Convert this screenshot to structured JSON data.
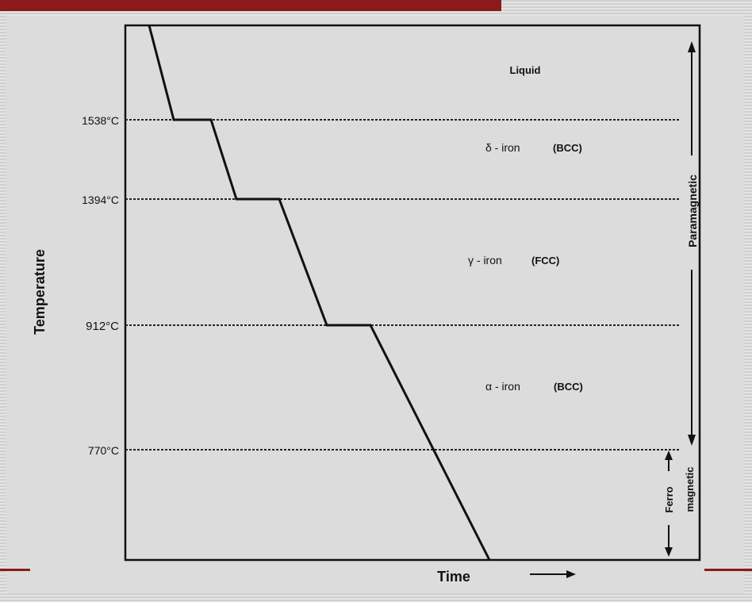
{
  "diagram": {
    "temperature_marks": [
      "1538°C",
      "1394°C",
      "912°C",
      "770°C"
    ],
    "phases": {
      "liquid": "Liquid",
      "delta": "δ - iron",
      "delta_struct": "(BCC)",
      "gamma": "γ - iron",
      "gamma_struct": "(FCC)",
      "alpha": "α - iron",
      "alpha_struct": "(BCC)"
    },
    "y_axis_label": "Temperature",
    "x_axis_label": "Time",
    "magnetic": {
      "paramagnetic": "Paramagnetic",
      "ferro": "Ferro",
      "magnetic": "magnetic"
    }
  },
  "colors": {
    "accent": "#8b1a1a",
    "line": "#111111",
    "background": "#dcdcdc"
  }
}
